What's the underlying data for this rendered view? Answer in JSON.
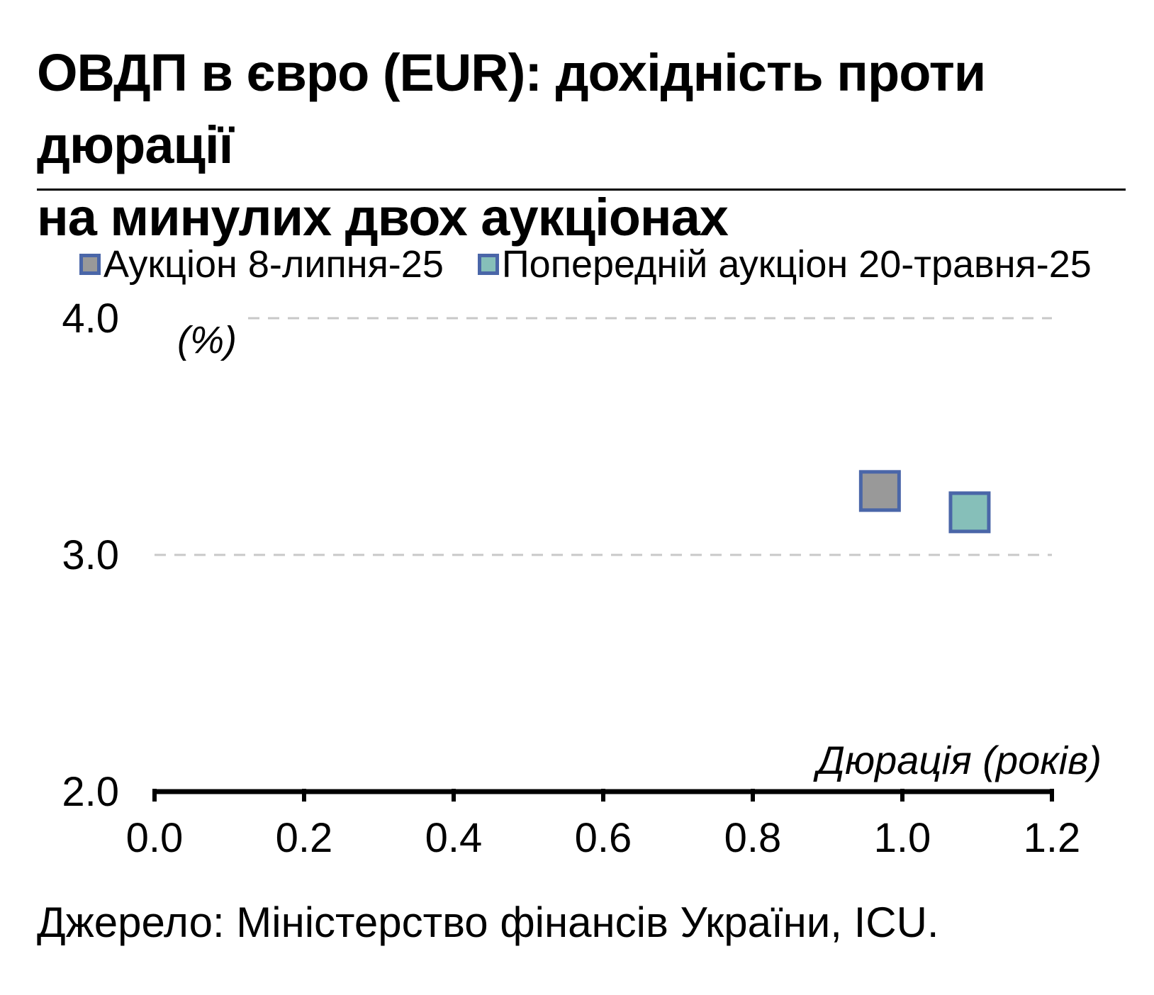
{
  "title_lines": [
    "ОВДП в євро (EUR): дохідність проти дюрації",
    "на минулих двох аукціонах"
  ],
  "source": "Джерело: Міністерство фінансів України, ICU.",
  "marker_border_color": "#4a66a8",
  "chart_data": {
    "type": "scatter",
    "ylabel": "(%)",
    "xlabel": "Дюрація (років)",
    "xlim": [
      0.0,
      1.2
    ],
    "ylim": [
      2.0,
      4.0
    ],
    "x_ticks": [
      "0.0",
      "0.2",
      "0.4",
      "0.6",
      "0.8",
      "1.0",
      "1.2"
    ],
    "y_ticks": [
      "2.0",
      "3.0",
      "4.0"
    ],
    "grid": "horizontal dashed",
    "legend_position": "top",
    "series": [
      {
        "name": "Аукціон 8-липня-25",
        "color": "#999999",
        "points": [
          {
            "x": 0.97,
            "y": 3.27
          }
        ]
      },
      {
        "name": "Попередній аукціон 20-травня-25",
        "color": "#86bfb9",
        "points": [
          {
            "x": 1.09,
            "y": 3.18
          }
        ]
      }
    ]
  }
}
